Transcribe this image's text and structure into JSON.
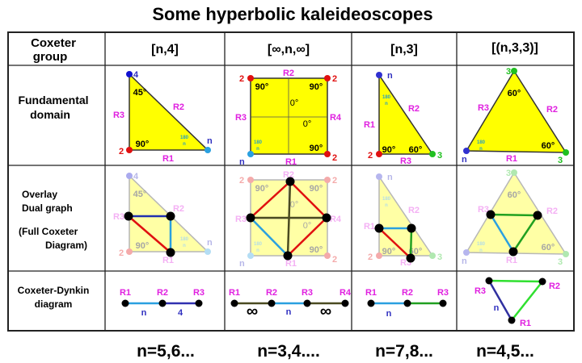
{
  "title": "Some hyperbolic kaleideoscopes",
  "row_labels": {
    "coxeter_group": [
      "Coxeter",
      "group"
    ],
    "fundamental_domain": [
      "Fundamental",
      "domain"
    ],
    "overlay": [
      "Overlay",
      "Dual graph",
      "(Full Coxeter",
      "Diagram)"
    ],
    "dynkin": [
      "Coxeter-Dynkin",
      "diagram"
    ]
  },
  "columns": [
    {
      "group": "[n,4]",
      "range": "n=5,6..."
    },
    {
      "group": "[∞,n,∞]",
      "range": "n=3,4...."
    },
    {
      "group": "[n,3]",
      "range": "n=7,8..."
    },
    {
      "group": "[(n,3,3)]",
      "range": "n=4,5..."
    }
  ],
  "labels": {
    "R1": "R1",
    "R2": "R2",
    "R3": "R3",
    "R4": "R4",
    "n": "n",
    "two": "2",
    "three": "3",
    "four": "4",
    "a90": "90°",
    "a45": "45°",
    "a60": "60°",
    "a0": "0°",
    "frac_num": "180",
    "frac_den": "n",
    "inf": "∞"
  },
  "colors": {
    "domain_fill": "#ffff00",
    "mirror_label": "#e020e0",
    "order2": "#e01010",
    "order3": "#20c020",
    "order4": "#1010d0",
    "order_n": "#2aa0e0",
    "order_inf": "#4a4a20"
  }
}
